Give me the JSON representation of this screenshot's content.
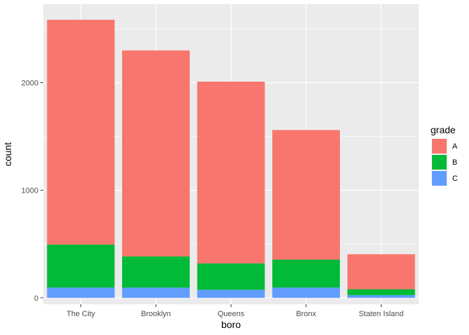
{
  "chart_data": {
    "type": "bar",
    "stacked": true,
    "categories": [
      "The City",
      "Brooklyn",
      "Queens",
      "Bronx",
      "Staten Island"
    ],
    "series": [
      {
        "name": "A",
        "color": "#F8766D",
        "values": [
          2090,
          1915,
          1690,
          1205,
          325
        ]
      },
      {
        "name": "B",
        "color": "#00BA38",
        "values": [
          400,
          290,
          245,
          260,
          55
        ]
      },
      {
        "name": "C",
        "color": "#619CFF",
        "values": [
          95,
          95,
          75,
          95,
          25
        ]
      }
    ],
    "xlabel": "boro",
    "ylabel": "count",
    "ylim": [
      -60,
      2730
    ],
    "yticks": [
      0,
      1000,
      2000
    ],
    "ytick_labels": [
      "0",
      "1000",
      "2000"
    ],
    "grid": true,
    "panel_background": "#EBEBEB",
    "grid_color": "#FFFFFF",
    "legend": {
      "title": "grade",
      "position": "right"
    }
  }
}
